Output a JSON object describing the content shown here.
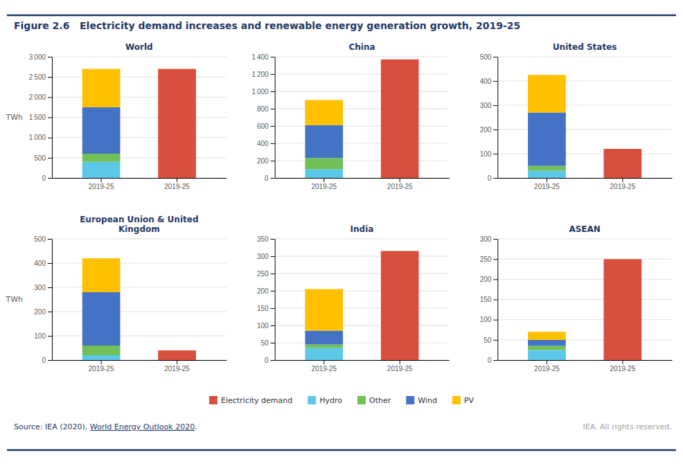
{
  "title": "Figure 2.6   Electricity demand increases and renewable energy generation growth, 2019-25",
  "source": [
    "Source: IEA (2020), ",
    "World Energy Outlook 2020",
    "."
  ],
  "rights": "IEA. All rights reserved.",
  "chart_data": [
    {
      "type": "bar",
      "stacked": true,
      "grid": true,
      "title": "World",
      "ylabel": "TWh",
      "categories": [
        "2019-25",
        "2019-25"
      ],
      "ylim": [
        0,
        3000
      ],
      "yticks": [
        0,
        500,
        {
          "value": 1000,
          "label": "1 000"
        },
        {
          "value": 1500,
          "label": "1 500"
        },
        {
          "value": 2000,
          "label": "2 000"
        },
        {
          "value": 2500,
          "label": "2 500"
        },
        {
          "value": 3000,
          "label": "3 000"
        }
      ],
      "series": [
        {
          "name": "Electricity demand",
          "color": "#D94F3D",
          "values": [
            null,
            2700
          ]
        },
        {
          "name": "Hydro",
          "color": "#5BC8E8",
          "values": [
            400,
            null
          ]
        },
        {
          "name": "Other",
          "color": "#70C057",
          "values": [
            200,
            null
          ]
        },
        {
          "name": "Wind",
          "color": "#4472C4",
          "values": [
            1150,
            null
          ]
        },
        {
          "name": "PV",
          "color": "#FFC000",
          "values": [
            950,
            null
          ]
        }
      ]
    },
    {
      "type": "bar",
      "stacked": true,
      "grid": true,
      "title": "China",
      "categories": [
        "2019-25",
        "2019-25"
      ],
      "ylim": [
        0,
        1400
      ],
      "yticks": [
        0,
        200,
        400,
        600,
        800,
        {
          "value": 1000,
          "label": "1 000"
        },
        {
          "value": 1200,
          "label": "1 200"
        },
        {
          "value": 1400,
          "label": "1 400"
        }
      ],
      "series": [
        {
          "name": "Electricity demand",
          "color": "#D94F3D",
          "values": [
            null,
            1370
          ]
        },
        {
          "name": "Hydro",
          "color": "#5BC8E8",
          "values": [
            100,
            null
          ]
        },
        {
          "name": "Other",
          "color": "#70C057",
          "values": [
            130,
            null
          ]
        },
        {
          "name": "Wind",
          "color": "#4472C4",
          "values": [
            380,
            null
          ]
        },
        {
          "name": "PV",
          "color": "#FFC000",
          "values": [
            290,
            null
          ]
        }
      ]
    },
    {
      "type": "bar",
      "stacked": true,
      "grid": true,
      "title": "United States",
      "categories": [
        "2019-25",
        "2019-25"
      ],
      "ylim": [
        0,
        500
      ],
      "yticks": [
        0,
        100,
        200,
        300,
        400,
        500
      ],
      "series": [
        {
          "name": "Electricity demand",
          "color": "#D94F3D",
          "values": [
            null,
            120
          ]
        },
        {
          "name": "Hydro",
          "color": "#5BC8E8",
          "values": [
            30,
            null
          ]
        },
        {
          "name": "Other",
          "color": "#70C057",
          "values": [
            20,
            null
          ]
        },
        {
          "name": "Wind",
          "color": "#4472C4",
          "values": [
            220,
            null
          ]
        },
        {
          "name": "PV",
          "color": "#FFC000",
          "values": [
            155,
            null
          ]
        }
      ]
    },
    {
      "type": "bar",
      "stacked": true,
      "grid": true,
      "title": "European Union & United\nKingdom",
      "ylabel": "TWh",
      "categories": [
        "2019-25",
        "2019-25"
      ],
      "ylim": [
        0,
        500
      ],
      "yticks": [
        0,
        100,
        200,
        300,
        400,
        500
      ],
      "series": [
        {
          "name": "Electricity demand",
          "color": "#D94F3D",
          "values": [
            null,
            40
          ]
        },
        {
          "name": "Hydro",
          "color": "#5BC8E8",
          "values": [
            20,
            null
          ]
        },
        {
          "name": "Other",
          "color": "#70C057",
          "values": [
            40,
            null
          ]
        },
        {
          "name": "Wind",
          "color": "#4472C4",
          "values": [
            220,
            null
          ]
        },
        {
          "name": "PV",
          "color": "#FFC000",
          "values": [
            140,
            null
          ]
        }
      ]
    },
    {
      "type": "bar",
      "stacked": true,
      "grid": true,
      "title": "India",
      "categories": [
        "2019-25",
        "2019-25"
      ],
      "ylim": [
        0,
        350
      ],
      "yticks": [
        0,
        50,
        100,
        150,
        200,
        250,
        300,
        350
      ],
      "series": [
        {
          "name": "Electricity demand",
          "color": "#D94F3D",
          "values": [
            null,
            315
          ]
        },
        {
          "name": "Hydro",
          "color": "#5BC8E8",
          "values": [
            35,
            null
          ]
        },
        {
          "name": "Other",
          "color": "#70C057",
          "values": [
            10,
            null
          ]
        },
        {
          "name": "Wind",
          "color": "#4472C4",
          "values": [
            40,
            null
          ]
        },
        {
          "name": "PV",
          "color": "#FFC000",
          "values": [
            120,
            null
          ]
        }
      ]
    },
    {
      "type": "bar",
      "stacked": true,
      "grid": true,
      "title": "ASEAN",
      "categories": [
        "2019-25",
        "2019-25"
      ],
      "ylim": [
        0,
        300
      ],
      "yticks": [
        0,
        50,
        100,
        150,
        200,
        250,
        300
      ],
      "series": [
        {
          "name": "Electricity demand",
          "color": "#D94F3D",
          "values": [
            null,
            250
          ]
        },
        {
          "name": "Hydro",
          "color": "#5BC8E8",
          "values": [
            25,
            null
          ]
        },
        {
          "name": "Other",
          "color": "#70C057",
          "values": [
            10,
            null
          ]
        },
        {
          "name": "Wind",
          "color": "#4472C4",
          "values": [
            15,
            null
          ]
        },
        {
          "name": "PV",
          "color": "#FFC000",
          "values": [
            20,
            null
          ]
        }
      ]
    }
  ]
}
